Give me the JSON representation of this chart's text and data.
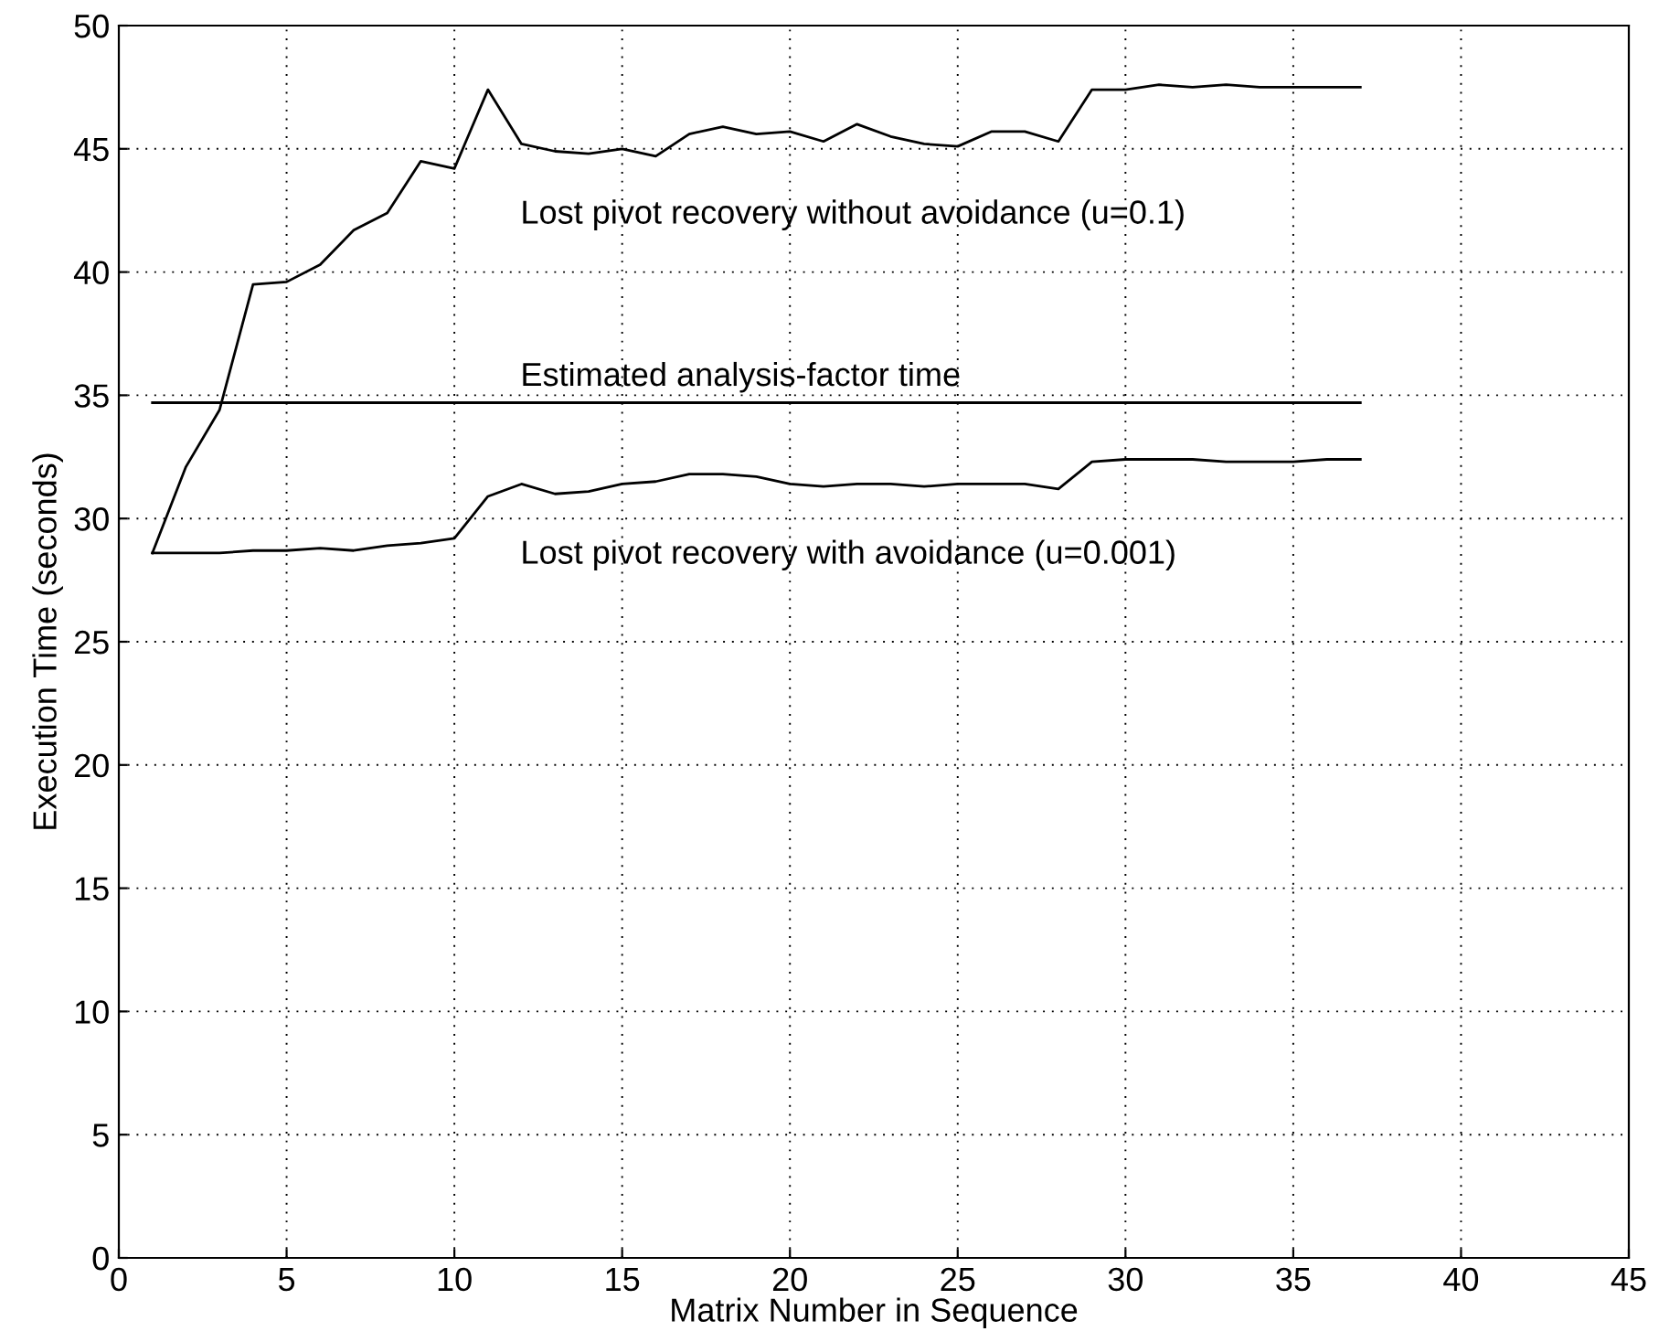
{
  "chart_data": {
    "type": "line",
    "xlabel": "Matrix Number in Sequence",
    "ylabel": "Execution Time (seconds)",
    "x": [
      1,
      2,
      3,
      4,
      5,
      6,
      7,
      8,
      9,
      10,
      11,
      12,
      13,
      14,
      15,
      16,
      17,
      18,
      19,
      20,
      21,
      22,
      23,
      24,
      25,
      26,
      27,
      28,
      29,
      30,
      31,
      32,
      33,
      34,
      35,
      36,
      37
    ],
    "series": [
      {
        "name": "Lost pivot recovery without avoidance (u=0.1)",
        "color": "#000000",
        "values": [
          28.6,
          32.1,
          34.4,
          39.5,
          39.6,
          40.3,
          41.7,
          42.4,
          44.5,
          44.2,
          47.4,
          45.2,
          44.9,
          44.8,
          45.0,
          44.7,
          45.6,
          45.9,
          45.6,
          45.7,
          45.3,
          46.0,
          45.5,
          45.2,
          45.1,
          45.7,
          45.7,
          45.3,
          47.4,
          47.4,
          47.6,
          47.5,
          47.6,
          47.5,
          47.5,
          47.5,
          47.5
        ]
      },
      {
        "name": "Estimated analysis-factor time",
        "color": "#000000",
        "x": [
          1,
          37
        ],
        "values": [
          34.7,
          34.7
        ]
      },
      {
        "name": "Lost pivot recovery with avoidance (u=0.001)",
        "color": "#000000",
        "values": [
          28.6,
          28.6,
          28.6,
          28.7,
          28.7,
          28.8,
          28.7,
          28.9,
          29.0,
          29.2,
          30.9,
          31.4,
          31.0,
          31.1,
          31.4,
          31.5,
          31.8,
          31.8,
          31.7,
          31.4,
          31.3,
          31.4,
          31.4,
          31.3,
          31.4,
          31.4,
          31.4,
          31.2,
          32.3,
          32.4,
          32.4,
          32.4,
          32.3,
          32.3,
          32.3,
          32.4,
          32.4
        ]
      }
    ],
    "xlim": [
      0,
      45
    ],
    "xticks": [
      0,
      5,
      10,
      15,
      20,
      25,
      30,
      35,
      40,
      45
    ],
    "ylim": [
      0,
      50
    ],
    "yticks": [
      0,
      5,
      10,
      15,
      20,
      25,
      30,
      35,
      40,
      45,
      50
    ],
    "grid": true,
    "line_style": "solid",
    "marker": "none",
    "legend": false
  }
}
